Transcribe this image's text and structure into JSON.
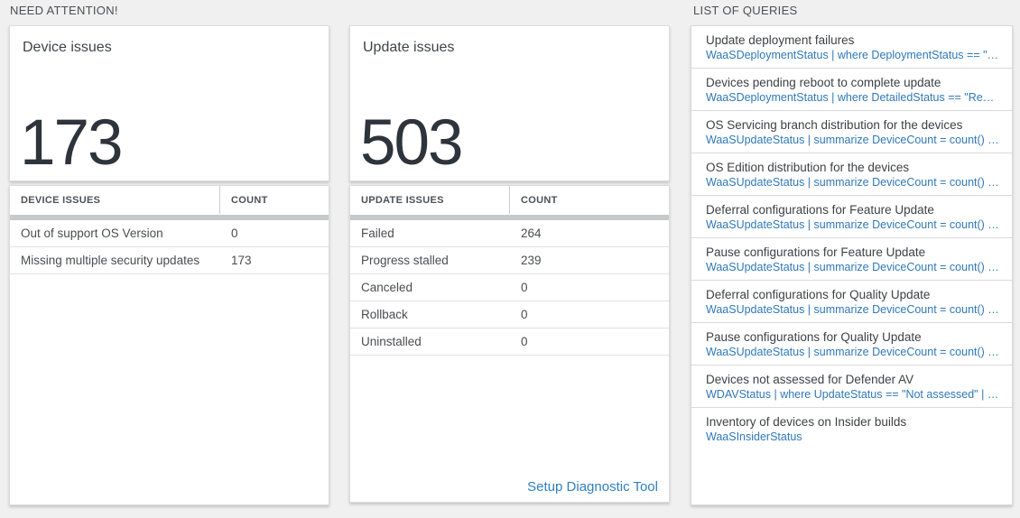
{
  "sections": {
    "need_attention": {
      "label": "NEED ATTENTION!"
    },
    "list_of_queries": {
      "label": "LIST OF QUERIES"
    }
  },
  "device_issues_tile": {
    "title": "Device issues",
    "count": "173",
    "table": {
      "columns": [
        "DEVICE ISSUES",
        "COUNT"
      ],
      "rows": [
        {
          "label": "Out of support OS Version",
          "count": "0"
        },
        {
          "label": "Missing multiple security updates",
          "count": "173"
        }
      ]
    }
  },
  "update_issues_tile": {
    "title": "Update issues",
    "count": "503",
    "table": {
      "columns": [
        "UPDATE ISSUES",
        "COUNT"
      ],
      "rows": [
        {
          "label": "Failed",
          "count": "264"
        },
        {
          "label": "Progress stalled",
          "count": "239"
        },
        {
          "label": "Canceled",
          "count": "0"
        },
        {
          "label": "Rollback",
          "count": "0"
        },
        {
          "label": "Uninstalled",
          "count": "0"
        }
      ]
    },
    "link_label": "Setup Diagnostic Tool"
  },
  "queries": {
    "items": [
      {
        "title": "Update deployment failures",
        "query": "WaaSDeploymentStatus | where DeploymentStatus == \"Failed\" |..."
      },
      {
        "title": "Devices pending reboot to complete update",
        "query": "WaaSDeploymentStatus | where DetailedStatus == \"Reboot pend..."
      },
      {
        "title": "OS Servicing branch distribution for the devices",
        "query": "WaaSUpdateStatus | summarize DeviceCount = count() by OSSer..."
      },
      {
        "title": "OS Edition distribution for the devices",
        "query": "WaaSUpdateStatus | summarize DeviceCount = count() by OSEdit..."
      },
      {
        "title": "Deferral configurations for Feature Update",
        "query": "WaaSUpdateStatus | summarize DeviceCount = count() by Featur..."
      },
      {
        "title": "Pause configurations for Feature Update",
        "query": "WaaSUpdateStatus | summarize DeviceCount = count() by Featur..."
      },
      {
        "title": "Deferral configurations for Quality Update",
        "query": "WaaSUpdateStatus | summarize DeviceCount = count() by Qualit..."
      },
      {
        "title": "Pause configurations for Quality Update",
        "query": "WaaSUpdateStatus | summarize DeviceCount = count() by Qualit..."
      },
      {
        "title": "Devices not assessed for Defender AV",
        "query": "WDAVStatus | where UpdateStatus == \"Not assessed\" | render ta..."
      },
      {
        "title": "Inventory of devices on Insider builds",
        "query": "WaaSInsiderStatus"
      }
    ]
  },
  "colors": {
    "page_background": "#f0f0f0",
    "query_link_blue": "#2f78b9",
    "action_link_blue": "#2f7fc1",
    "big_number": "#2e343b",
    "scrollbar_gray": "#c6c9cb"
  }
}
